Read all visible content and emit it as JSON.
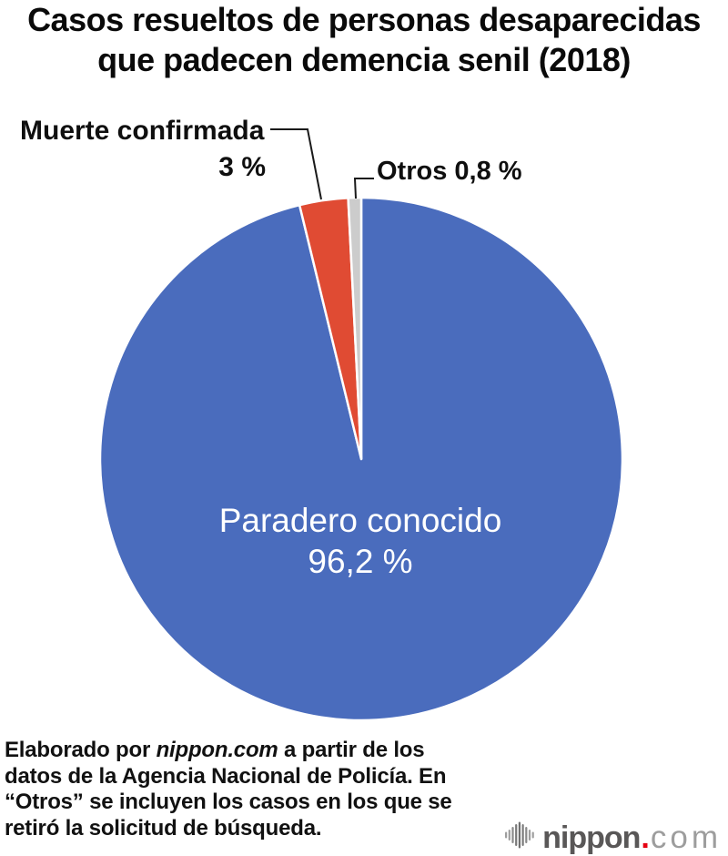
{
  "title": "Casos resueltos de personas desaparecidas que padecen demencia senil (2018)",
  "chart_data": {
    "type": "pie",
    "title": "Casos resueltos de personas desaparecidas que padecen demencia senil (2018)",
    "unit": "%",
    "start_angle_deg": 0,
    "direction": "clockwise",
    "slice_separator_color": "#ffffff",
    "legend": "none",
    "slices": [
      {
        "label": "Paradero conocido",
        "value": 96.2,
        "display_value": "96,2 %",
        "color": "#4a6cbd",
        "label_position": "inside",
        "label_color": "#ffffff"
      },
      {
        "label": "Muerte confirmada",
        "value": 3,
        "display_value": "3 %",
        "color": "#e04b33",
        "label_position": "outside",
        "label_color": "#0f0f0f"
      },
      {
        "label": "Otros",
        "value": 0.8,
        "display_value": "0,8 %",
        "color": "#cccccc",
        "label_position": "outside",
        "label_color": "#0f0f0f"
      }
    ]
  },
  "annotations": {
    "otros_combined": "Otros 0,8 %"
  },
  "footer": {
    "line1_pre": "Elaborado por ",
    "line1_italic": "nippon.com",
    "line1_post": " a partir de los",
    "line2": "datos de la Agencia Nacional de Policía. En",
    "line3": "“Otros” se incluyen los casos en los que se",
    "line4": "retiró la solicitud de búsqueda."
  },
  "logo": {
    "icon": "sound-wave-icon",
    "name": "nippon",
    "dot": ".",
    "tld": "com",
    "name_color": "#595757",
    "dot_color": "#e60012",
    "tld_color": "#9d9d9d"
  }
}
